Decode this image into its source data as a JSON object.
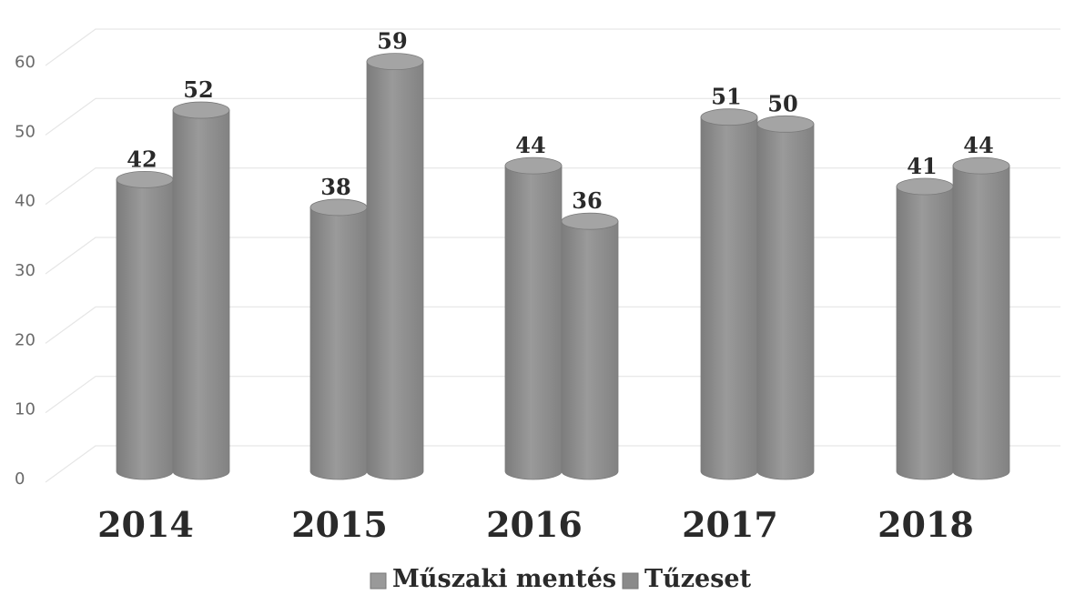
{
  "chart_data": {
    "type": "bar",
    "style": "3d-cylinder",
    "categories": [
      "2014",
      "2015",
      "2016",
      "2017",
      "2018"
    ],
    "series": [
      {
        "name": "Műszaki mentés",
        "values": [
          42,
          38,
          44,
          51,
          41
        ]
      },
      {
        "name": "Tűzeset",
        "values": [
          52,
          59,
          36,
          50,
          44
        ]
      }
    ],
    "y_ticks": [
      "0",
      "10",
      "20",
      "30",
      "40",
      "50",
      "60"
    ],
    "ylim": [
      0,
      60
    ],
    "grid": true,
    "legend_position": "bottom",
    "colors": {
      "bar": "#8e8e8e",
      "grid": "#e6e6e6"
    }
  }
}
